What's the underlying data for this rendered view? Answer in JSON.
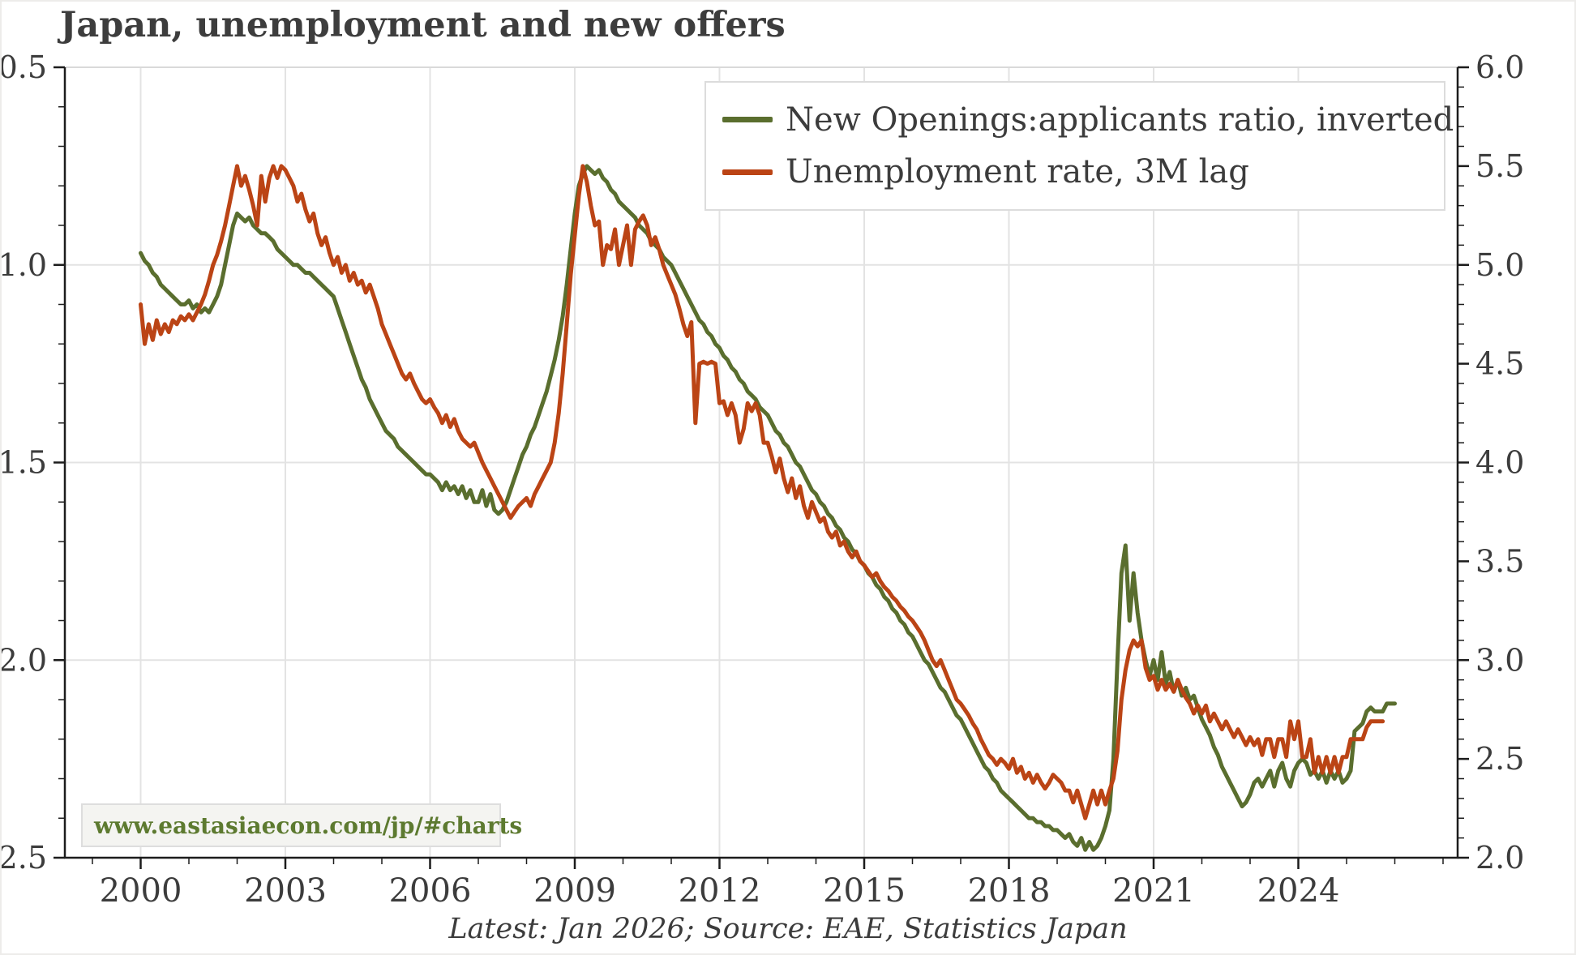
{
  "page": {
    "title": "Japan, unemployment and new offers",
    "caption": "Latest: Jan 2026; Source: EAE, Statistics Japan",
    "watermark": "www.eastasiaecon.com/jp/#charts"
  },
  "legend": {
    "items": [
      {
        "label": "New Openings:applicants ratio, inverted",
        "color": "#5a6e2e"
      },
      {
        "label": "Unemployment rate, 3M lag",
        "color": "#bb4415"
      }
    ]
  },
  "colors": {
    "green": "#5a6e2e",
    "red": "#bb4415",
    "text": "#3c3c3c",
    "grid": "#e3e3e3",
    "spine": "#1c1c1c",
    "top_border": "#d9d9d9"
  },
  "chart_data": {
    "type": "line",
    "title": "Japan, unemployment and new offers",
    "grid": true,
    "legend_position": "upper right",
    "x_axis": {
      "range": [
        1998.42,
        2027.3
      ],
      "tick_years": [
        2000,
        2003,
        2006,
        2009,
        2012,
        2015,
        2018,
        2021,
        2024
      ],
      "tick_labels": [
        "2000",
        "2003",
        "2006",
        "2009",
        "2012",
        "2015",
        "2018",
        "2021",
        "2024"
      ],
      "minor_tick_step_years": 1
    },
    "left_axis": {
      "series": "New Openings:applicants ratio, inverted",
      "inverted": true,
      "range": [
        0.5,
        2.5
      ],
      "tick_values": [
        0.5,
        1.0,
        1.5,
        2.0,
        2.5
      ],
      "tick_labels": [
        "0.5",
        "1.0",
        "1.5",
        "2.0",
        "2.5"
      ],
      "minor_step": 0.1
    },
    "right_axis": {
      "series": "Unemployment rate, 3M lag",
      "inverted": false,
      "range": [
        2.0,
        6.0
      ],
      "tick_values": [
        6.0,
        5.5,
        5.0,
        4.5,
        4.0,
        3.5,
        3.0,
        2.5,
        2.0
      ],
      "tick_labels": [
        "6.0",
        "5.5",
        "5.0",
        "4.5",
        "4.0",
        "3.5",
        "3.0",
        "2.5",
        "2.0"
      ],
      "minor_step": 0.1
    },
    "series": [
      {
        "name": "New Openings:applicants ratio, inverted",
        "axis": "left",
        "color": "#5a6e2e",
        "start": "2000-01",
        "frequency": "monthly",
        "values": [
          0.97,
          0.99,
          1.0,
          1.02,
          1.03,
          1.05,
          1.06,
          1.07,
          1.08,
          1.09,
          1.1,
          1.1,
          1.09,
          1.11,
          1.1,
          1.12,
          1.11,
          1.12,
          1.1,
          1.08,
          1.05,
          1.0,
          0.95,
          0.9,
          0.87,
          0.88,
          0.89,
          0.88,
          0.9,
          0.91,
          0.92,
          0.92,
          0.93,
          0.94,
          0.96,
          0.97,
          0.98,
          0.99,
          1.0,
          1.0,
          1.01,
          1.02,
          1.02,
          1.03,
          1.04,
          1.05,
          1.06,
          1.07,
          1.08,
          1.11,
          1.14,
          1.17,
          1.2,
          1.23,
          1.26,
          1.29,
          1.31,
          1.34,
          1.36,
          1.38,
          1.4,
          1.42,
          1.43,
          1.44,
          1.46,
          1.47,
          1.48,
          1.49,
          1.5,
          1.51,
          1.52,
          1.53,
          1.53,
          1.54,
          1.55,
          1.57,
          1.55,
          1.57,
          1.56,
          1.58,
          1.56,
          1.59,
          1.57,
          1.6,
          1.6,
          1.57,
          1.61,
          1.58,
          1.62,
          1.63,
          1.62,
          1.6,
          1.57,
          1.54,
          1.51,
          1.48,
          1.46,
          1.43,
          1.41,
          1.38,
          1.35,
          1.32,
          1.28,
          1.24,
          1.19,
          1.13,
          1.05,
          0.96,
          0.87,
          0.8,
          0.77,
          0.75,
          0.76,
          0.77,
          0.76,
          0.78,
          0.79,
          0.81,
          0.82,
          0.84,
          0.85,
          0.86,
          0.87,
          0.88,
          0.9,
          0.91,
          0.92,
          0.94,
          0.95,
          0.96,
          0.98,
          0.99,
          1.0,
          1.02,
          1.04,
          1.06,
          1.08,
          1.1,
          1.12,
          1.14,
          1.15,
          1.17,
          1.18,
          1.2,
          1.21,
          1.23,
          1.24,
          1.26,
          1.27,
          1.29,
          1.3,
          1.32,
          1.33,
          1.34,
          1.36,
          1.37,
          1.38,
          1.4,
          1.42,
          1.43,
          1.45,
          1.46,
          1.48,
          1.5,
          1.51,
          1.53,
          1.55,
          1.57,
          1.58,
          1.6,
          1.61,
          1.63,
          1.64,
          1.66,
          1.67,
          1.69,
          1.7,
          1.72,
          1.73,
          1.75,
          1.76,
          1.78,
          1.79,
          1.81,
          1.82,
          1.84,
          1.85,
          1.87,
          1.88,
          1.9,
          1.91,
          1.93,
          1.94,
          1.96,
          1.98,
          2.0,
          2.01,
          2.03,
          2.05,
          2.07,
          2.08,
          2.1,
          2.12,
          2.14,
          2.15,
          2.17,
          2.19,
          2.21,
          2.23,
          2.25,
          2.27,
          2.28,
          2.3,
          2.31,
          2.33,
          2.34,
          2.35,
          2.36,
          2.37,
          2.38,
          2.39,
          2.4,
          2.4,
          2.41,
          2.41,
          2.42,
          2.42,
          2.43,
          2.43,
          2.44,
          2.45,
          2.44,
          2.46,
          2.47,
          2.45,
          2.48,
          2.46,
          2.48,
          2.47,
          2.45,
          2.42,
          2.38,
          2.25,
          2.0,
          1.78,
          1.71,
          1.9,
          1.78,
          1.88,
          1.95,
          2.0,
          2.04,
          2.0,
          2.05,
          1.98,
          2.06,
          2.03,
          2.08,
          2.05,
          2.09,
          2.07,
          2.1,
          2.09,
          2.12,
          2.15,
          2.17,
          2.19,
          2.22,
          2.24,
          2.27,
          2.29,
          2.31,
          2.33,
          2.35,
          2.37,
          2.36,
          2.34,
          2.31,
          2.3,
          2.32,
          2.3,
          2.28,
          2.32,
          2.28,
          2.26,
          2.3,
          2.32,
          2.28,
          2.26,
          2.25,
          2.26,
          2.29,
          2.28,
          2.3,
          2.28,
          2.31,
          2.28,
          2.3,
          2.28,
          2.31,
          2.3,
          2.28,
          2.18,
          2.17,
          2.16,
          2.13,
          2.12,
          2.13,
          2.13,
          2.13,
          2.11,
          2.11,
          2.11
        ]
      },
      {
        "name": "Unemployment rate, 3M lag",
        "axis": "right",
        "color": "#bb4415",
        "start": "2000-01",
        "frequency": "monthly",
        "values": [
          4.8,
          4.6,
          4.7,
          4.62,
          4.72,
          4.65,
          4.7,
          4.66,
          4.72,
          4.7,
          4.74,
          4.72,
          4.75,
          4.72,
          4.76,
          4.8,
          4.85,
          4.92,
          5.0,
          5.05,
          5.12,
          5.2,
          5.3,
          5.4,
          5.5,
          5.4,
          5.45,
          5.38,
          5.3,
          5.2,
          5.45,
          5.32,
          5.44,
          5.5,
          5.44,
          5.5,
          5.48,
          5.44,
          5.4,
          5.32,
          5.36,
          5.28,
          5.22,
          5.26,
          5.16,
          5.1,
          5.14,
          5.06,
          5.0,
          5.04,
          4.96,
          5.0,
          4.92,
          4.96,
          4.9,
          4.92,
          4.86,
          4.9,
          4.84,
          4.78,
          4.7,
          4.65,
          4.6,
          4.55,
          4.5,
          4.45,
          4.42,
          4.45,
          4.4,
          4.36,
          4.32,
          4.3,
          4.32,
          4.28,
          4.25,
          4.2,
          4.24,
          4.18,
          4.22,
          4.16,
          4.12,
          4.1,
          4.08,
          4.1,
          4.05,
          4.0,
          3.96,
          3.92,
          3.88,
          3.84,
          3.8,
          3.76,
          3.72,
          3.75,
          3.78,
          3.8,
          3.82,
          3.78,
          3.84,
          3.88,
          3.92,
          3.96,
          4.0,
          4.1,
          4.25,
          4.45,
          4.7,
          4.95,
          5.15,
          5.35,
          5.5,
          5.42,
          5.3,
          5.2,
          5.22,
          5.0,
          5.1,
          5.08,
          5.18,
          5.0,
          5.1,
          5.2,
          5.0,
          5.18,
          5.22,
          5.25,
          5.2,
          5.1,
          5.14,
          5.08,
          5.0,
          4.95,
          4.9,
          4.85,
          4.78,
          4.7,
          4.64,
          4.71,
          4.2,
          4.5,
          4.51,
          4.5,
          4.51,
          4.5,
          4.3,
          4.31,
          4.24,
          4.3,
          4.24,
          4.1,
          4.17,
          4.3,
          4.26,
          4.3,
          4.24,
          4.1,
          4.1,
          4.03,
          3.95,
          4.02,
          3.92,
          3.85,
          3.92,
          3.82,
          3.88,
          3.78,
          3.72,
          3.8,
          3.75,
          3.7,
          3.72,
          3.65,
          3.62,
          3.65,
          3.58,
          3.6,
          3.55,
          3.52,
          3.55,
          3.5,
          3.48,
          3.45,
          3.42,
          3.44,
          3.4,
          3.37,
          3.35,
          3.32,
          3.3,
          3.27,
          3.25,
          3.22,
          3.2,
          3.17,
          3.14,
          3.1,
          3.05,
          3.0,
          2.97,
          3.0,
          2.95,
          2.9,
          2.85,
          2.8,
          2.78,
          2.75,
          2.72,
          2.68,
          2.65,
          2.6,
          2.56,
          2.52,
          2.5,
          2.47,
          2.5,
          2.48,
          2.45,
          2.5,
          2.43,
          2.46,
          2.4,
          2.43,
          2.38,
          2.42,
          2.38,
          2.35,
          2.38,
          2.42,
          2.4,
          2.38,
          2.34,
          2.34,
          2.28,
          2.34,
          2.27,
          2.2,
          2.27,
          2.34,
          2.27,
          2.34,
          2.27,
          2.34,
          2.4,
          2.54,
          2.8,
          2.95,
          3.05,
          3.1,
          3.07,
          3.1,
          2.96,
          2.9,
          2.92,
          2.85,
          2.9,
          2.85,
          2.88,
          2.84,
          2.9,
          2.85,
          2.81,
          2.78,
          2.73,
          2.77,
          2.73,
          2.77,
          2.69,
          2.73,
          2.69,
          2.65,
          2.69,
          2.65,
          2.61,
          2.65,
          2.61,
          2.57,
          2.61,
          2.57,
          2.6,
          2.52,
          2.6,
          2.6,
          2.51,
          2.6,
          2.6,
          2.51,
          2.69,
          2.6,
          2.69,
          2.51,
          2.51,
          2.6,
          2.43,
          2.51,
          2.43,
          2.51,
          2.43,
          2.51,
          2.43,
          2.51,
          2.51,
          2.6,
          2.6,
          2.6,
          2.6,
          2.66,
          2.69,
          2.69,
          2.69,
          2.69
        ]
      }
    ]
  }
}
